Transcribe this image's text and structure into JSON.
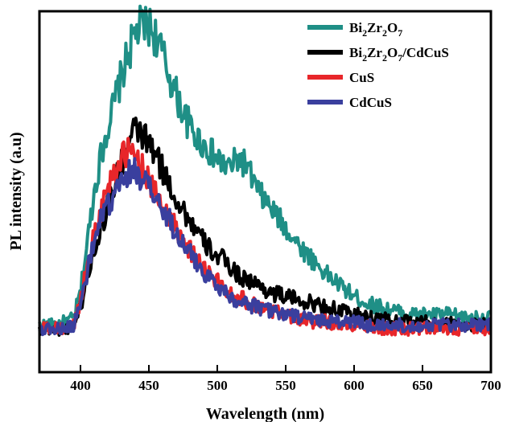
{
  "chart_data": {
    "type": "line",
    "title": "",
    "xlabel": "Wavelength (nm)",
    "ylabel": "PL intensity (a.u)",
    "xlim": [
      370,
      700
    ],
    "ylim": [
      0,
      100
    ],
    "y_ticks_shown": false,
    "grid": false,
    "legend_position": "top-right",
    "x_ticks": [
      400,
      450,
      500,
      550,
      600,
      650,
      700
    ],
    "series": [
      {
        "name": "Bi2Zr2O7",
        "legend_parts": [
          [
            "Bi",
            ""
          ],
          [
            "2",
            "sub"
          ],
          [
            "Zr",
            ""
          ],
          [
            "2",
            "sub"
          ],
          [
            "O",
            ""
          ],
          [
            "7",
            "sub"
          ]
        ],
        "color": "#1f8f86",
        "x": [
          370,
          380,
          390,
          395,
          400,
          405,
          410,
          415,
          420,
          425,
          430,
          435,
          440,
          445,
          450,
          455,
          460,
          465,
          470,
          475,
          480,
          485,
          490,
          495,
          500,
          505,
          510,
          515,
          520,
          525,
          530,
          540,
          550,
          560,
          570,
          580,
          590,
          600,
          610,
          620,
          630,
          640,
          650,
          660,
          670,
          680,
          690,
          700
        ],
        "y": [
          13,
          13,
          14,
          15,
          22,
          36,
          50,
          60,
          68,
          75,
          82,
          88,
          94,
          96,
          96,
          93,
          88,
          82,
          77,
          72,
          68,
          65,
          63,
          61,
          59,
          57,
          57,
          59,
          58,
          54,
          50,
          45,
          40,
          35,
          31,
          27,
          24,
          21,
          19,
          18,
          17,
          16,
          16,
          16,
          16,
          15,
          15,
          15
        ]
      },
      {
        "name": "Bi2Zr2O7/CdCuS",
        "legend_parts": [
          [
            "Bi",
            ""
          ],
          [
            "2",
            "sub"
          ],
          [
            "Zr",
            ""
          ],
          [
            "2",
            "sub"
          ],
          [
            "O",
            ""
          ],
          [
            "7",
            "sub"
          ],
          [
            "/CdCuS",
            ""
          ]
        ],
        "color": "#000000",
        "x": [
          370,
          380,
          390,
          395,
          400,
          405,
          410,
          415,
          420,
          425,
          430,
          435,
          440,
          445,
          450,
          455,
          460,
          465,
          470,
          475,
          480,
          485,
          490,
          495,
          500,
          505,
          510,
          515,
          520,
          530,
          540,
          550,
          560,
          570,
          580,
          590,
          600,
          610,
          620,
          630,
          640,
          650,
          660,
          670,
          680,
          690,
          700
        ],
        "y": [
          12,
          12,
          12,
          13,
          18,
          26,
          34,
          40,
          46,
          52,
          58,
          63,
          67,
          66,
          63,
          60,
          56,
          52,
          48,
          45,
          42,
          39,
          36,
          34,
          32,
          31,
          29,
          27,
          26,
          24,
          22,
          21,
          20,
          19,
          18,
          17,
          16,
          15,
          15,
          14,
          14,
          14,
          13,
          14,
          13,
          13,
          13
        ]
      },
      {
        "name": "CuS",
        "legend_parts": [
          [
            "CuS",
            ""
          ]
        ],
        "color": "#e8262a",
        "x": [
          370,
          380,
          390,
          395,
          400,
          405,
          410,
          415,
          420,
          425,
          430,
          435,
          440,
          445,
          450,
          455,
          460,
          465,
          470,
          475,
          480,
          485,
          490,
          495,
          500,
          510,
          520,
          530,
          540,
          550,
          560,
          570,
          580,
          590,
          600,
          610,
          620,
          630,
          640,
          650,
          660,
          670,
          680,
          690,
          700
        ],
        "y": [
          12,
          12,
          12,
          13,
          20,
          30,
          38,
          45,
          52,
          56,
          59,
          61,
          60,
          57,
          53,
          49,
          46,
          43,
          40,
          37,
          34,
          31,
          29,
          27,
          25,
          22,
          20,
          18,
          17,
          16,
          15,
          14,
          14,
          13,
          13,
          13,
          12,
          12,
          12,
          12,
          12,
          12,
          12,
          12,
          12
        ]
      },
      {
        "name": "CdCuS",
        "legend_parts": [
          [
            "CdCuS",
            ""
          ]
        ],
        "color": "#3a3f9e",
        "x": [
          370,
          380,
          390,
          395,
          400,
          405,
          410,
          415,
          420,
          425,
          430,
          435,
          440,
          445,
          450,
          455,
          460,
          465,
          470,
          475,
          480,
          485,
          490,
          495,
          500,
          510,
          520,
          530,
          540,
          550,
          560,
          570,
          580,
          590,
          600,
          610,
          620,
          630,
          640,
          650,
          660,
          670,
          680,
          690,
          700
        ],
        "y": [
          12,
          12,
          12,
          13,
          19,
          28,
          36,
          42,
          46,
          49,
          52,
          55,
          56,
          54,
          51,
          48,
          45,
          42,
          39,
          36,
          33,
          30,
          28,
          26,
          24,
          21,
          19,
          18,
          17,
          16,
          15,
          15,
          14,
          14,
          14,
          13,
          13,
          13,
          13,
          13,
          13,
          13,
          13,
          13,
          13
        ]
      }
    ]
  }
}
